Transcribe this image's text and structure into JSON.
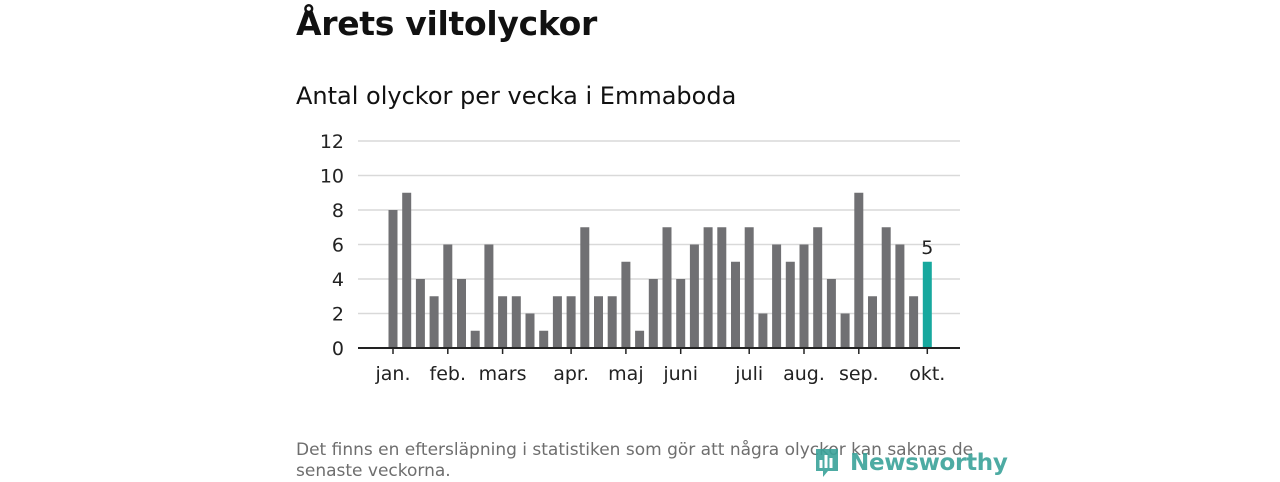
{
  "header": {
    "title": "Årets viltolyckor",
    "subtitle": "Antal olyckor per vecka i Emmaboda"
  },
  "footnote": "Det finns en eftersläpning i statistiken som gör att några olyckor kan saknas de senaste veckorna.",
  "brand": {
    "name": "Newsworthy"
  },
  "colors": {
    "bar": "#707073",
    "highlight": "#17a89e",
    "grid": "#d9d9d9",
    "axis": "#222222",
    "brand": "#3aa39a"
  },
  "chart_data": {
    "type": "bar",
    "title": "Antal olyckor per vecka i Emmaboda",
    "xlabel": "",
    "ylabel": "",
    "ylim": [
      0,
      12
    ],
    "yticks": [
      0,
      2,
      4,
      6,
      8,
      10,
      12
    ],
    "grid": true,
    "weeks": [
      1,
      2,
      3,
      4,
      5,
      6,
      7,
      8,
      9,
      10,
      11,
      12,
      13,
      14,
      15,
      16,
      17,
      18,
      19,
      20,
      21,
      22,
      23,
      24,
      25,
      26,
      27,
      28,
      29,
      30,
      31,
      32,
      33,
      34,
      35,
      36,
      37,
      38,
      39,
      40
    ],
    "values": [
      8,
      9,
      4,
      3,
      6,
      4,
      1,
      6,
      3,
      3,
      2,
      1,
      3,
      3,
      7,
      3,
      3,
      5,
      1,
      4,
      7,
      4,
      6,
      7,
      7,
      5,
      7,
      2,
      6,
      5,
      6,
      7,
      4,
      2,
      9,
      3,
      7,
      6,
      3,
      5
    ],
    "highlight_index": 39,
    "highlight_label": "5",
    "month_labels": [
      {
        "label": "jan.",
        "week": 1
      },
      {
        "label": "feb.",
        "week": 5
      },
      {
        "label": "mars",
        "week": 9
      },
      {
        "label": "apr.",
        "week": 14
      },
      {
        "label": "maj",
        "week": 18
      },
      {
        "label": "juni",
        "week": 22
      },
      {
        "label": "juli",
        "week": 27
      },
      {
        "label": "aug.",
        "week": 31
      },
      {
        "label": "sep.",
        "week": 35
      },
      {
        "label": "okt.",
        "week": 40
      }
    ]
  }
}
